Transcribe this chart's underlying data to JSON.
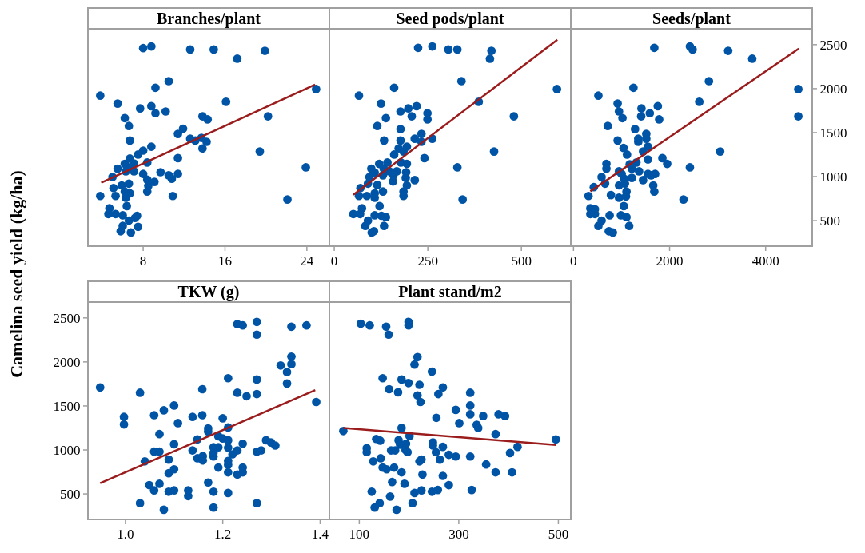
{
  "chart_data": [
    {
      "type": "scatter",
      "title": "Branches/plant",
      "ylabel": "Camelina seed yield (kg/ha)",
      "tick_labels": "x",
      "xlim": [
        2.6,
        26.2
      ],
      "xticks": [
        8,
        16,
        24
      ],
      "ylim": [
        210,
        2680
      ],
      "yticks": [
        500,
        1000,
        1500,
        2000,
        2500
      ],
      "series": [
        {
          "marker": "circle",
          "color": "#0054a6",
          "x": [
            8.0,
            8.8,
            12.6,
            14.9,
            17.2,
            19.9,
            10.5,
            9.2,
            3.8,
            24.9,
            5.5,
            7.7,
            8.8,
            9.2,
            10.2,
            16.1,
            20.2,
            6.2,
            6.6,
            13.8,
            14.3,
            11.9,
            11.4,
            6.7,
            12.6,
            13.1,
            13.7,
            14.2,
            13.8,
            8.8,
            8.0,
            7.5,
            19.4,
            11.4,
            8.4,
            6.7,
            6.2,
            7.1,
            5.5,
            6.7,
            6.3,
            7.1,
            8.0,
            9.7,
            10.5,
            11.4,
            10.8,
            5.0,
            8.4,
            9.1,
            8.5,
            8.4,
            6.6,
            5.9,
            5.1,
            6.2,
            6.7,
            3.8,
            5.3,
            6.3,
            10.9,
            23.9,
            22.1,
            6.4,
            4.7,
            4.6,
            5.3,
            6.0,
            6.6,
            7.2,
            7.4,
            6.0,
            5.8,
            6.8,
            7.5
          ],
          "values": [
            2460,
            2480,
            2445,
            2445,
            2340,
            2430,
            2085,
            2010,
            1920,
            1995,
            1830,
            1775,
            1800,
            1720,
            1740,
            1850,
            1685,
            1665,
            1575,
            1685,
            1650,
            1545,
            1485,
            1410,
            1430,
            1410,
            1440,
            1395,
            1320,
            1340,
            1295,
            1250,
            1285,
            1210,
            1160,
            1205,
            1145,
            1150,
            1090,
            1105,
            1060,
            1060,
            1030,
            1050,
            1015,
            1030,
            975,
            995,
            965,
            940,
            895,
            830,
            920,
            900,
            870,
            830,
            810,
            780,
            780,
            760,
            780,
            1105,
            740,
            665,
            640,
            575,
            575,
            560,
            500,
            530,
            555,
            440,
            380,
            365,
            430
          ]
        },
        {
          "type": "line",
          "color": "#9b1c1c",
          "x": [
            3.9,
            24.8
          ],
          "values": [
            930,
            2045
          ]
        }
      ]
    },
    {
      "type": "scatter",
      "title": "Seed pods/plant",
      "tick_labels": "x",
      "xlim": [
        -13,
        632
      ],
      "xticks": [
        0,
        250,
        500
      ],
      "ylim": [
        210,
        2680
      ],
      "yticks": [
        500,
        1000,
        1500,
        2000,
        2500
      ],
      "series": [
        {
          "marker": "circle",
          "color": "#0054a6",
          "x": [
            224,
            262,
            305,
            329,
            420,
            416,
            340,
            160,
            66,
            595,
            125,
            177,
            198,
            220,
            207,
            249,
            249,
            138,
            115,
            386,
            480,
            177,
            233,
            215,
            133,
            177,
            233,
            262,
            194,
            172,
            185,
            160,
            241,
            427,
            142,
            120,
            178,
            194,
            99,
            132,
            108,
            147,
            167,
            192,
            158,
            130,
            191,
            94,
            157,
            215,
            90,
            115,
            194,
            70,
            130,
            185,
            185,
            108,
            66,
            87,
            108,
            329,
            343,
            121,
            74,
            51,
            69,
            108,
            126,
            138,
            90,
            83,
            133,
            100,
            106
          ],
          "values": [
            2464,
            2480,
            2445,
            2445,
            2430,
            2340,
            2085,
            2010,
            1920,
            1995,
            1830,
            1740,
            1775,
            1800,
            1685,
            1720,
            1650,
            1665,
            1575,
            1850,
            1685,
            1540,
            1485,
            1430,
            1410,
            1410,
            1395,
            1430,
            1340,
            1320,
            1285,
            1250,
            1210,
            1285,
            1160,
            1145,
            1160,
            1145,
            1090,
            1090,
            1045,
            1060,
            1060,
            1050,
            1015,
            1015,
            985,
            995,
            945,
            960,
            920,
            905,
            900,
            870,
            830,
            830,
            780,
            810,
            780,
            780,
            760,
            1105,
            740,
            665,
            640,
            575,
            575,
            560,
            555,
            540,
            500,
            440,
            440,
            365,
            380
          ]
        },
        {
          "type": "line",
          "color": "#9b1c1c",
          "x": [
            51,
            596
          ],
          "values": [
            794,
            2555
          ]
        }
      ]
    },
    {
      "type": "scatter",
      "title": "Seeds/plant",
      "xlim": [
        -56,
        4970
      ],
      "xticks": [
        0,
        2000,
        4000
      ],
      "ylim": [
        210,
        2680
      ],
      "yticks": [
        500,
        1000,
        1500,
        2000,
        2500
      ],
      "series": [
        {
          "marker": "circle",
          "color": "#0054a6",
          "x": [
            1682,
            2423,
            2479,
            3220,
            3721,
            2819,
            1248,
            518,
            4680,
            4680,
            2618,
            919,
            947,
            1415,
            1755,
            1588,
            1409,
            1019,
            1783,
            713,
            1281,
            1515,
            1348,
            1515,
            919,
            1348,
            1042,
            1549,
            1448,
            1114,
            3053,
            1850,
            1950,
            1549,
            2423,
            685,
            685,
            1309,
            1170,
            1365,
            1214,
            947,
            1003,
            1549,
            1699,
            1616,
            585,
            1058,
            1214,
            657,
            947,
            1070,
            1448,
            1660,
            423,
            1682,
            1103,
            780,
            947,
            1092,
            312,
            2289,
            1047,
            351,
            446,
            351,
            446,
            752,
            987,
            1103,
            585,
            518,
            1159,
            735,
            819
          ],
          "values": [
            2464,
            2480,
            2445,
            2430,
            2340,
            2085,
            2010,
            1920,
            1995,
            1685,
            1850,
            1830,
            1740,
            1775,
            1800,
            1720,
            1685,
            1665,
            1650,
            1575,
            1540,
            1485,
            1430,
            1430,
            1410,
            1395,
            1325,
            1340,
            1285,
            1250,
            1285,
            1210,
            1145,
            1195,
            1105,
            1145,
            1090,
            1160,
            1140,
            1060,
            1090,
            1060,
            1030,
            1030,
            1030,
            1015,
            995,
            975,
            985,
            920,
            900,
            920,
            960,
            900,
            880,
            830,
            830,
            790,
            760,
            775,
            780,
            740,
            665,
            640,
            630,
            575,
            575,
            560,
            560,
            540,
            500,
            440,
            440,
            380,
            365
          ]
        },
        {
          "type": "line",
          "color": "#9b1c1c",
          "x": [
            351,
            4691
          ],
          "values": [
            833,
            2455
          ]
        }
      ]
    },
    {
      "type": "scatter",
      "title": "TKW (g)",
      "xlim": [
        0.923,
        1.419
      ],
      "xticks": [
        {
          "value": 1,
          "label": "1.0"
        },
        1.2,
        1.4
      ],
      "ylim": [
        210,
        2680
      ],
      "yticks": [
        500,
        1000,
        1500,
        2000,
        2500
      ],
      "series": [
        {
          "marker": "circle",
          "color": "#0054a6",
          "x": [
            0.948,
            0.997,
            0.997,
            1.03,
            1.03,
            1.04,
            1.049,
            1.059,
            1.059,
            1.059,
            1.07,
            1.07,
            1.07,
            1.079,
            1.079,
            1.089,
            1.089,
            1.089,
            1.1,
            1.1,
            1.1,
            1.1,
            1.108,
            1.129,
            1.129,
            1.138,
            1.138,
            1.148,
            1.148,
            1.158,
            1.158,
            1.159,
            1.159,
            1.17,
            1.17,
            1.17,
            1.181,
            1.181,
            1.181,
            1.181,
            1.181,
            1.191,
            1.191,
            1.191,
            1.2,
            1.2,
            1.211,
            1.211,
            1.211,
            1.211,
            1.211,
            1.211,
            1.211,
            1.211,
            1.22,
            1.23,
            1.23,
            1.23,
            1.23,
            1.241,
            1.241,
            1.241,
            1.241,
            1.249,
            1.27,
            1.27,
            1.27,
            1.27,
            1.27,
            1.27,
            1.279,
            1.289,
            1.299,
            1.308,
            1.319,
            1.332,
            1.332,
            1.341,
            1.341,
            1.341,
            1.372,
            1.392
          ],
          "values": [
            1710,
            1375,
            1290,
            1650,
            395,
            870,
            600,
            540,
            1395,
            980,
            980,
            615,
            1180,
            1450,
            320,
            890,
            735,
            525,
            1505,
            1065,
            780,
            540,
            1305,
            540,
            475,
            1375,
            995,
            1120,
            905,
            1690,
            1395,
            930,
            880,
            1245,
            1210,
            630,
            1030,
            965,
            925,
            525,
            345,
            1155,
            1030,
            800,
            1360,
            1130,
            1815,
            1255,
            1110,
            1025,
            875,
            830,
            745,
            510,
            950,
            2430,
            1650,
            995,
            720,
            2415,
            1070,
            800,
            745,
            1610,
            2455,
            2310,
            1800,
            1635,
            980,
            395,
            995,
            1110,
            1085,
            1050,
            1960,
            1885,
            1755,
            2060,
            1975,
            2400,
            2415,
            1545
          ]
        },
        {
          "type": "line",
          "color": "#9b1c1c",
          "x": [
            0.948,
            1.39
          ],
          "values": [
            622,
            1680
          ]
        }
      ]
    },
    {
      "type": "scatter",
      "title": "Plant stand/m2",
      "tick_labels": "x",
      "xlim": [
        40,
        525
      ],
      "xticks": [
        100,
        300,
        500
      ],
      "ylim": [
        210,
        2680
      ],
      "yticks": [
        500,
        1000,
        1500,
        2000,
        2500
      ],
      "series": [
        {
          "marker": "circle",
          "color": "#0054a6",
          "x": [
            68,
            103,
            121,
            154,
            159,
            199,
            199,
            217,
            211,
            246,
            147,
            185,
            199,
            221,
            160,
            178,
            217,
            223,
            268,
            259,
            323,
            323,
            294,
            323,
            349,
            380,
            393,
            255,
            301,
            336,
            339,
            185,
            201,
            374,
            495,
            134,
            142,
            179,
            182,
            194,
            115,
            115,
            164,
            172,
            193,
            197,
            248,
            248,
            268,
            254,
            418,
            403,
            280,
            294,
            323,
            143,
            262,
            128,
            225,
            221,
            147,
            155,
            170,
            185,
            227,
            268,
            355,
            374,
            407,
            166,
            191,
            280,
            125,
            211,
            225,
            246,
            258,
            326,
            162,
            141,
            131,
            207,
            175
          ],
          "values": [
            1215,
            2435,
            2415,
            2400,
            2310,
            2455,
            2415,
            2055,
            1970,
            1890,
            1815,
            1800,
            1760,
            1740,
            1690,
            1655,
            1620,
            1545,
            1710,
            1635,
            1650,
            1505,
            1455,
            1405,
            1385,
            1405,
            1385,
            1365,
            1305,
            1285,
            1250,
            1250,
            1160,
            1180,
            1120,
            1125,
            1105,
            1110,
            1060,
            1070,
            1020,
            975,
            995,
            995,
            1000,
            975,
            1085,
            1050,
            1035,
            975,
            1035,
            965,
            945,
            925,
            925,
            905,
            890,
            870,
            890,
            870,
            800,
            780,
            800,
            745,
            720,
            705,
            835,
            745,
            745,
            635,
            615,
            600,
            525,
            510,
            540,
            525,
            545,
            545,
            470,
            395,
            345,
            395,
            320
          ]
        },
        {
          "type": "line",
          "color": "#9b1c1c",
          "x": [
            68,
            495
          ],
          "values": [
            1250,
            1056
          ]
        }
      ]
    }
  ]
}
